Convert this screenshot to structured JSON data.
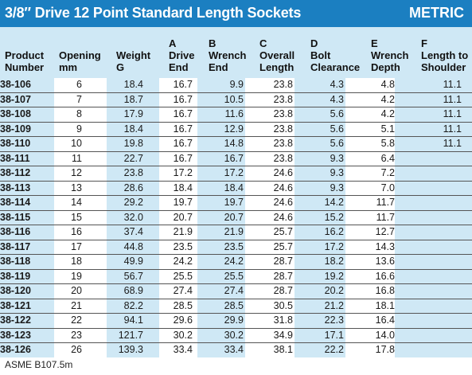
{
  "header": {
    "title": "3/8″ Drive 12 Point Standard Length Sockets",
    "unit_label": "METRIC"
  },
  "columns": [
    {
      "line1": "",
      "line2": "Product",
      "line3": "Number"
    },
    {
      "line1": "",
      "line2": "Opening",
      "line3": "mm"
    },
    {
      "line1": "",
      "line2": "Weight",
      "line3": "G"
    },
    {
      "line1": "A",
      "line2": "Drive",
      "line3": "End"
    },
    {
      "line1": "B",
      "line2": "Wrench",
      "line3": "End"
    },
    {
      "line1": "C",
      "line2": "Overall",
      "line3": "Length"
    },
    {
      "line1": "D",
      "line2": "Bolt",
      "line3": "Clearance"
    },
    {
      "line1": "E",
      "line2": "Wrench",
      "line3": "Depth"
    },
    {
      "line1": "F",
      "line2": "Length to",
      "line3": "Shoulder"
    }
  ],
  "rows": [
    [
      "38-106",
      "6",
      "18.4",
      "16.7",
      "9.9",
      "23.8",
      "4.3",
      "4.8",
      "11.1"
    ],
    [
      "38-107",
      "7",
      "18.7",
      "16.7",
      "10.5",
      "23.8",
      "4.3",
      "4.2",
      "11.1"
    ],
    [
      "38-108",
      "8",
      "17.9",
      "16.7",
      "11.6",
      "23.8",
      "5.6",
      "4.2",
      "11.1"
    ],
    [
      "38-109",
      "9",
      "18.4",
      "16.7",
      "12.9",
      "23.8",
      "5.6",
      "5.1",
      "11.1"
    ],
    [
      "38-110",
      "10",
      "19.8",
      "16.7",
      "14.8",
      "23.8",
      "5.6",
      "5.8",
      "11.1"
    ],
    [
      "38-111",
      "11",
      "22.7",
      "16.7",
      "16.7",
      "23.8",
      "9.3",
      "6.4",
      ""
    ],
    [
      "38-112",
      "12",
      "23.8",
      "17.2",
      "17.2",
      "24.6",
      "9.3",
      "7.2",
      ""
    ],
    [
      "38-113",
      "13",
      "28.6",
      "18.4",
      "18.4",
      "24.6",
      "9.3",
      "7.0",
      ""
    ],
    [
      "38-114",
      "14",
      "29.2",
      "19.7",
      "19.7",
      "24.6",
      "14.2",
      "11.7",
      ""
    ],
    [
      "38-115",
      "15",
      "32.0",
      "20.7",
      "20.7",
      "24.6",
      "15.2",
      "11.7",
      ""
    ],
    [
      "38-116",
      "16",
      "37.4",
      "21.9",
      "21.9",
      "25.7",
      "16.2",
      "12.7",
      ""
    ],
    [
      "38-117",
      "17",
      "44.8",
      "23.5",
      "23.5",
      "25.7",
      "17.2",
      "14.3",
      ""
    ],
    [
      "38-118",
      "18",
      "49.9",
      "24.2",
      "24.2",
      "28.7",
      "18.2",
      "13.6",
      ""
    ],
    [
      "38-119",
      "19",
      "56.7",
      "25.5",
      "25.5",
      "28.7",
      "19.2",
      "16.6",
      ""
    ],
    [
      "38-120",
      "20",
      "68.9",
      "27.4",
      "27.4",
      "28.7",
      "20.2",
      "16.8",
      ""
    ],
    [
      "38-121",
      "21",
      "82.2",
      "28.5",
      "28.5",
      "30.5",
      "21.2",
      "18.1",
      ""
    ],
    [
      "38-122",
      "22",
      "94.1",
      "29.6",
      "29.9",
      "31.8",
      "22.3",
      "16.4",
      ""
    ],
    [
      "38-123",
      "23",
      "121.7",
      "30.2",
      "30.2",
      "34.9",
      "17.1",
      "14.0",
      ""
    ],
    [
      "38-126",
      "26",
      "139.3",
      "33.4",
      "33.4",
      "38.1",
      "22.2",
      "17.8",
      ""
    ]
  ],
  "footer": {
    "note": "ASME B107.5m"
  },
  "colors": {
    "title_bar": "#1b7fc1",
    "alt_band": "#cfe8f5",
    "title_text": "#ffffff"
  }
}
